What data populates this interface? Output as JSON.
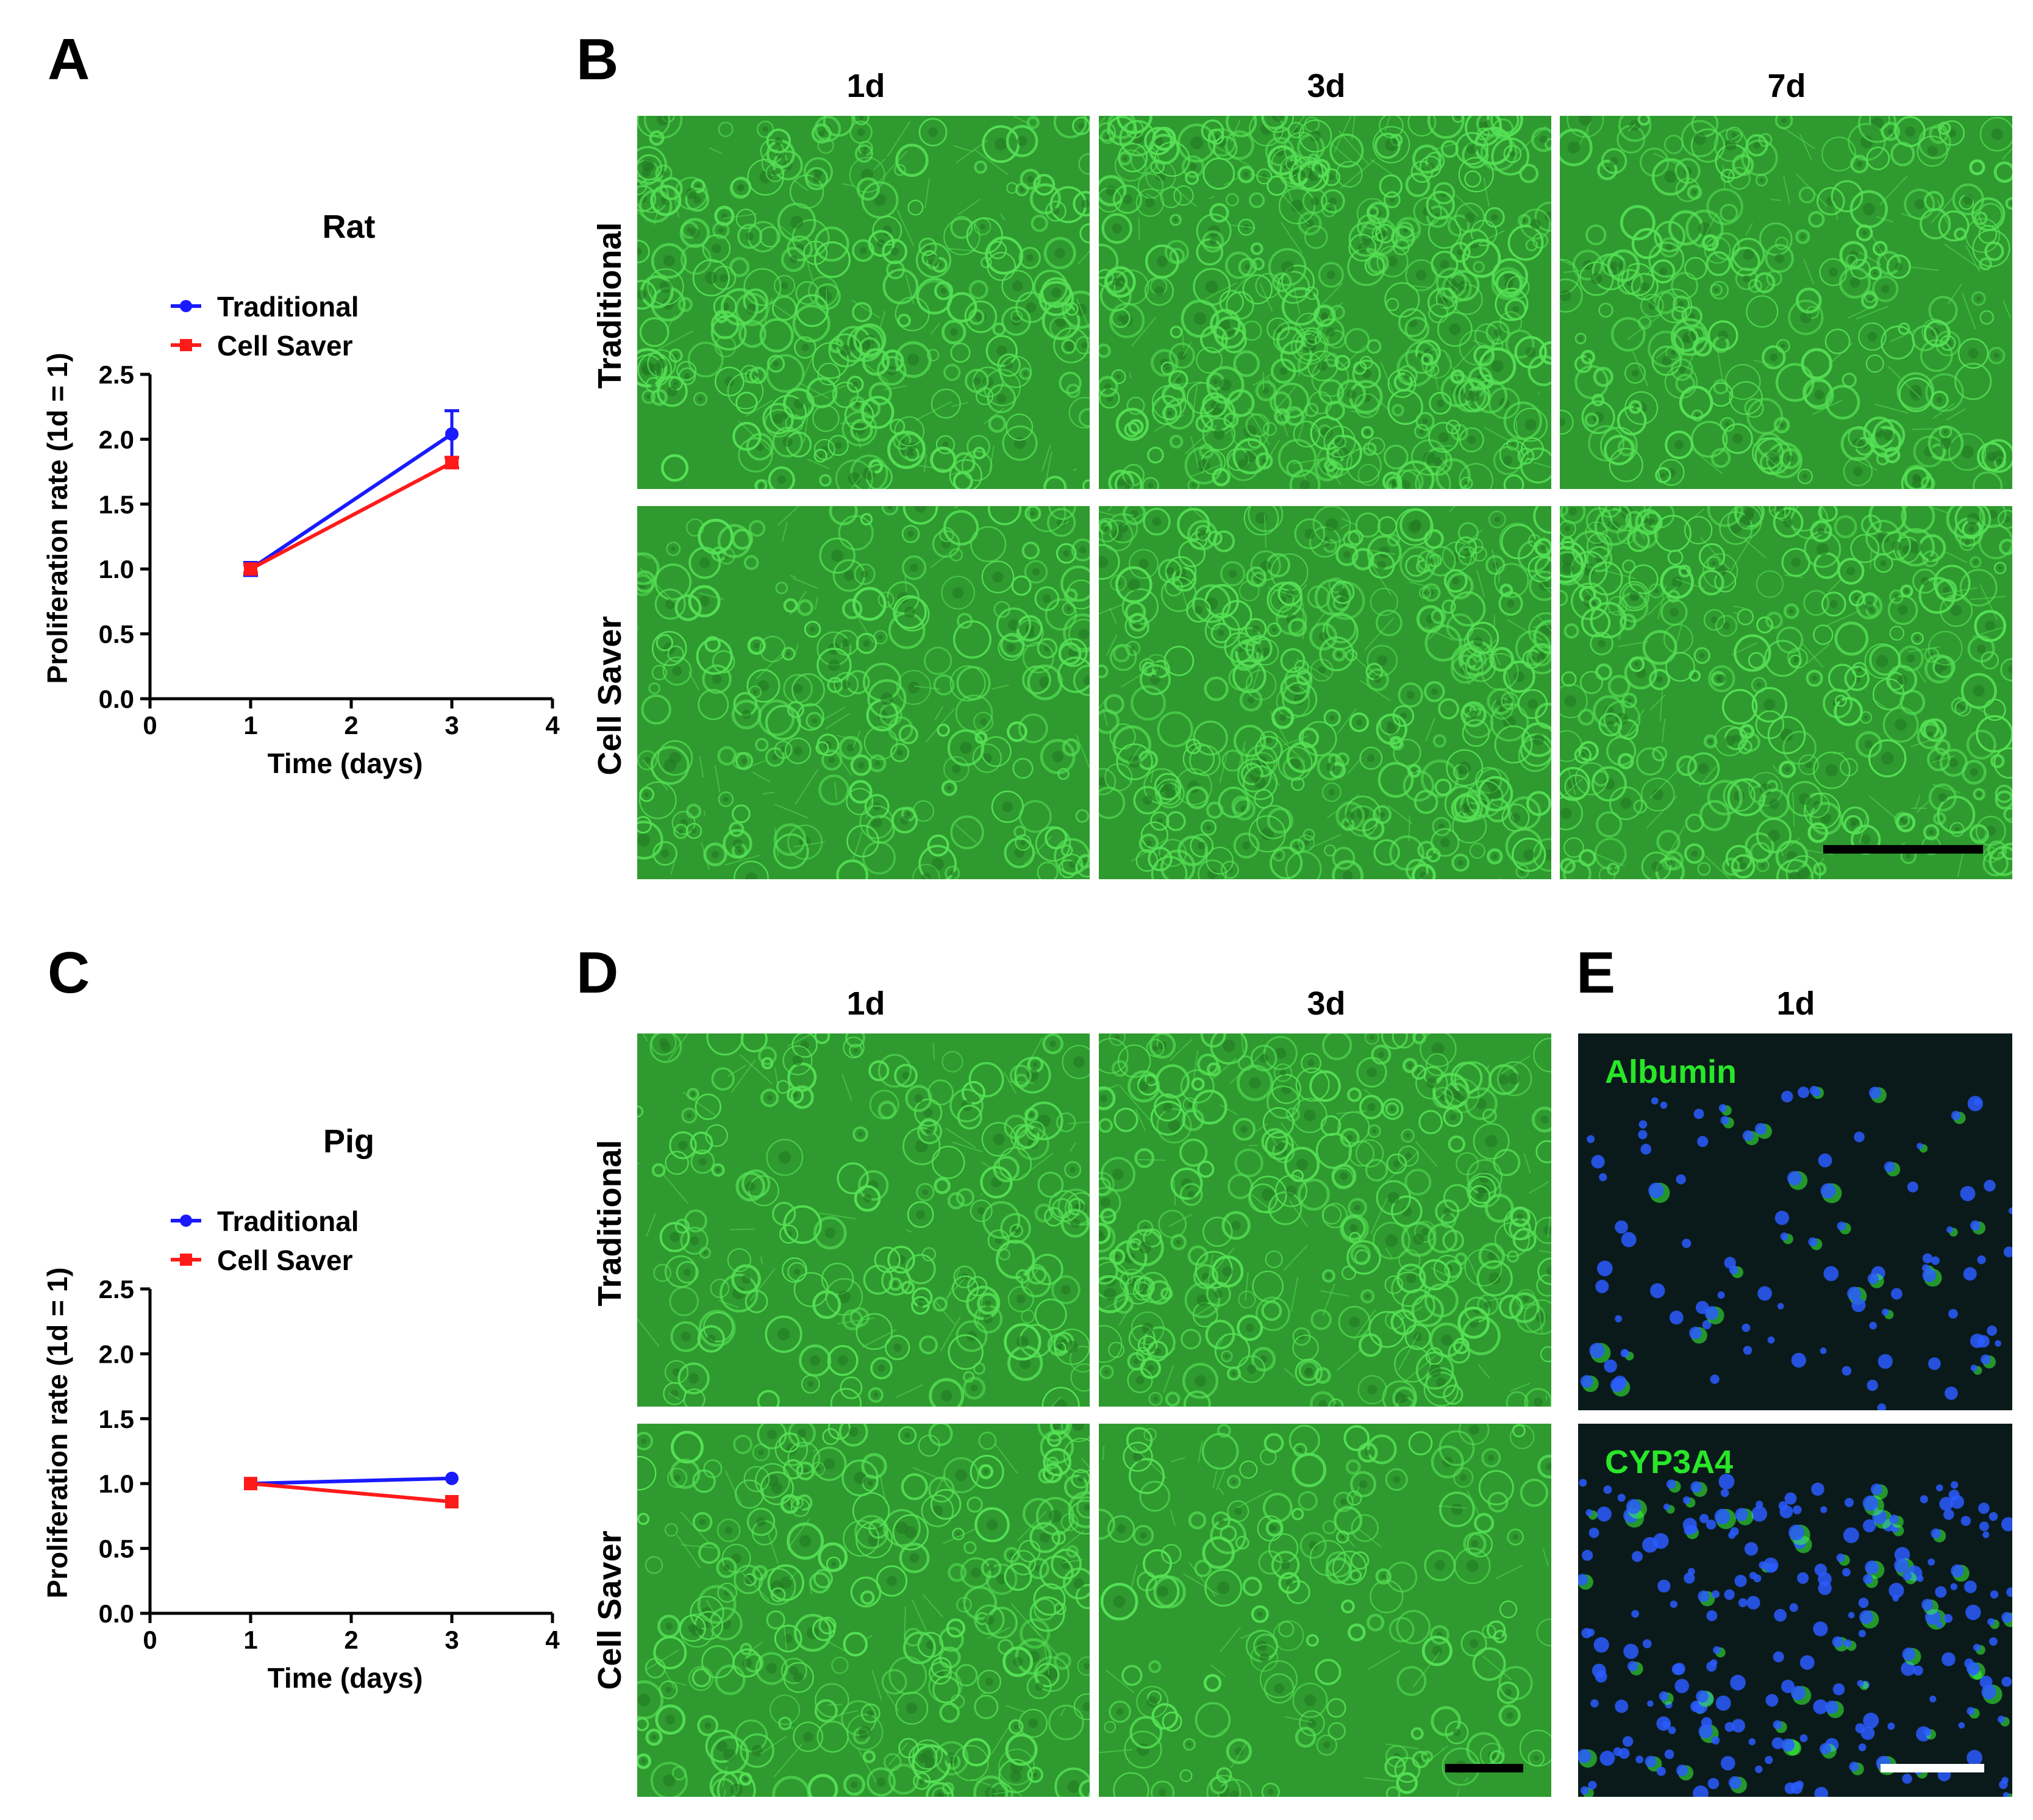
{
  "panels": {
    "A": {
      "letter": "A"
    },
    "B": {
      "letter": "B",
      "columns": [
        "1d",
        "3d",
        "7d"
      ],
      "rows": [
        "Traditional",
        "Cell Saver"
      ]
    },
    "C": {
      "letter": "C"
    },
    "D": {
      "letter": "D",
      "columns": [
        "1d",
        "3d"
      ],
      "rows": [
        "Traditional",
        "Cell Saver"
      ]
    },
    "E": {
      "letter": "E",
      "column": "1d",
      "stains": [
        "Albumin",
        "CYP3A4"
      ]
    }
  },
  "colors": {
    "traditional": "#1a1aff",
    "cell_saver": "#ff1a1a",
    "phase_bg": "#2f9a2f",
    "phase_cell": "#55e055",
    "fluor_bg": "#0a1a1a",
    "fluor_nuclei": "#2a5cff",
    "fluor_green": "#3aff3a"
  },
  "chart_data": [
    {
      "type": "line",
      "title": "Rat",
      "xlabel": "Time (days)",
      "ylabel": "Proliferation rate (1d = 1)",
      "xlim": [
        0,
        4
      ],
      "ylim": [
        0,
        2.5
      ],
      "xticks": [
        "0",
        "1",
        "2",
        "3",
        "4"
      ],
      "yticks": [
        "0.0",
        "0.5",
        "1.0",
        "1.5",
        "2.0",
        "2.5"
      ],
      "legend": "top-left",
      "series": [
        {
          "name": "Traditional",
          "x": [
            1,
            3
          ],
          "y": [
            1.0,
            2.04
          ],
          "err": [
            0.05,
            0.18
          ]
        },
        {
          "name": "Cell Saver",
          "x": [
            1,
            3
          ],
          "y": [
            1.0,
            1.82
          ],
          "err": [
            0.03,
            0.04
          ]
        }
      ]
    },
    {
      "type": "line",
      "title": "Pig",
      "xlabel": "Time (days)",
      "ylabel": "Proliferation rate (1d = 1)",
      "xlim": [
        0,
        4
      ],
      "ylim": [
        0,
        2.5
      ],
      "xticks": [
        "0",
        "1",
        "2",
        "3",
        "4"
      ],
      "yticks": [
        "0.0",
        "0.5",
        "1.0",
        "1.5",
        "2.0",
        "2.5"
      ],
      "legend": "top-left",
      "series": [
        {
          "name": "Traditional",
          "x": [
            1,
            3
          ],
          "y": [
            1.0,
            1.04
          ],
          "err": [
            0.01,
            0.01
          ]
        },
        {
          "name": "Cell Saver",
          "x": [
            1,
            3
          ],
          "y": [
            1.0,
            0.86
          ],
          "err": [
            0.01,
            0.01
          ]
        }
      ]
    }
  ]
}
